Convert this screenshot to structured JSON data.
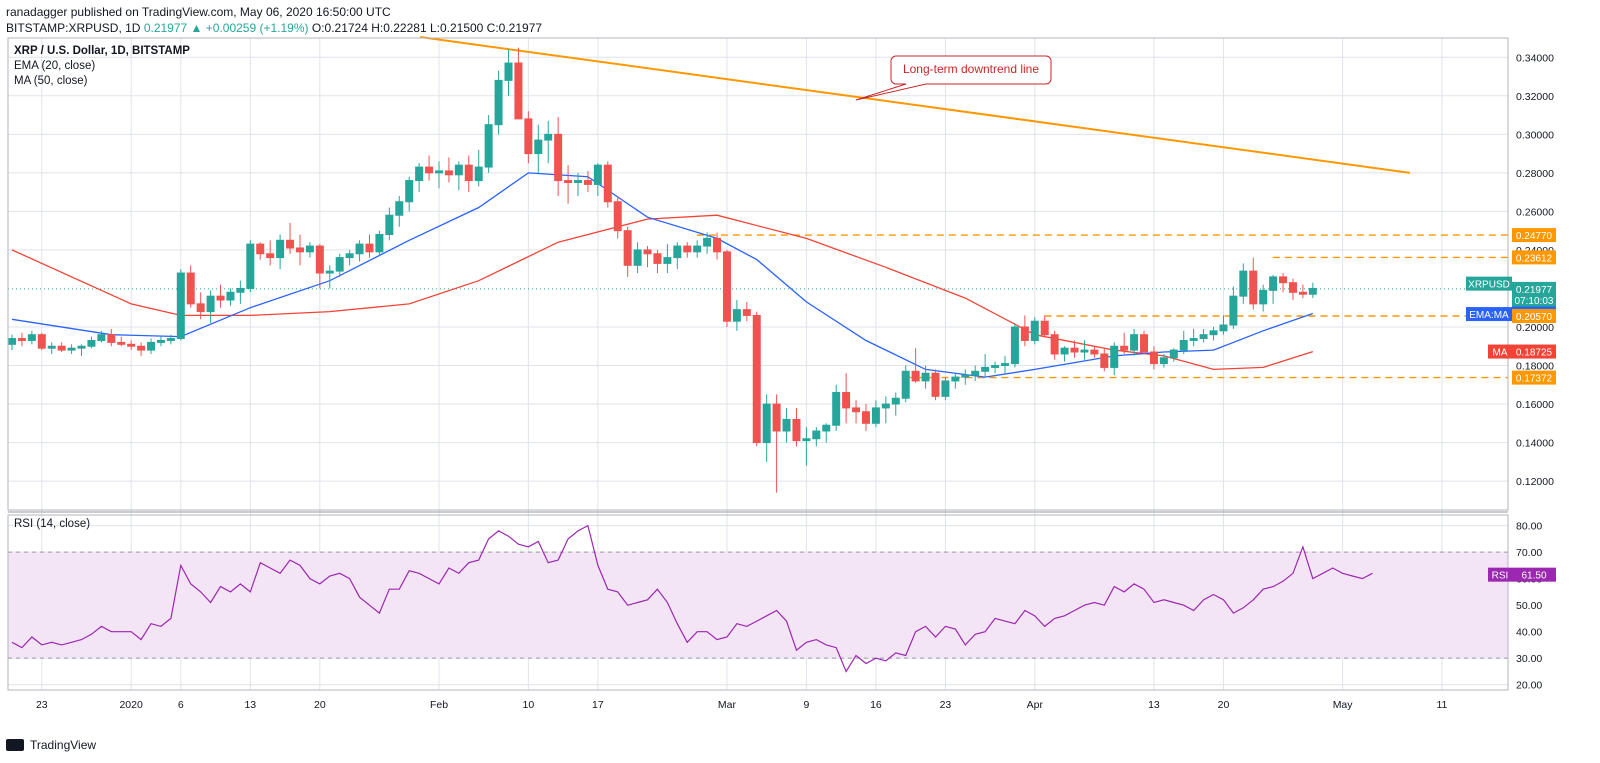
{
  "header": {
    "line1": "ranadagger published on TradingView.com, May 06, 2020 16:50:00 UTC",
    "symbol": "BITSTAMP:XRPUSD, 1D",
    "last": "0.21977",
    "change": "▲ +0.00259 (+1.19%)",
    "ohlc": "O:0.21724 H:0.22281 L:0.21500 C:0.21977"
  },
  "legend": {
    "title": "XRP / U.S. Dollar, 1D, BITSTAMP",
    "ema": "EMA (20, close)",
    "ma": "MA (50, close)",
    "rsi": "RSI (14, close)"
  },
  "annotation": "Long-term downtrend line",
  "footer": {
    "brand": "TradingView"
  },
  "colors": {
    "up": "#26a69a",
    "down": "#ef5350",
    "ema": "#2962ff",
    "ma": "#f44336",
    "trend": "#ff9800",
    "rsi": "#9c27b0",
    "rsi_band": "#f3e5f5",
    "grid": "#e0e3eb"
  },
  "chart_data": [
    {
      "type": "candlestick",
      "title": "XRP / U.S. Dollar, 1D, BITSTAMP",
      "x_ticks": [
        "23",
        "2020",
        "6",
        "13",
        "20",
        "Feb",
        "10",
        "17",
        "Mar",
        "9",
        "16",
        "23",
        "Apr",
        "13",
        "20",
        "May",
        "11"
      ],
      "y_ticks": [
        "0.34000",
        "0.32000",
        "0.30000",
        "0.28000",
        "0.26000",
        "0.24000",
        "0.20000",
        "0.18000",
        "0.16000",
        "0.14000",
        "0.12000"
      ],
      "ylim": [
        0.105,
        0.35
      ],
      "price_labels": [
        {
          "text": "0.24770",
          "value": 0.2477,
          "color": "#ff9800"
        },
        {
          "text": "0.23612",
          "value": 0.23612,
          "color": "#ff9800"
        },
        {
          "text": "XRPUSD",
          "value": 0.2225,
          "color": "#26a69a"
        },
        {
          "text": "0.21977",
          "value": 0.21977,
          "color": "#26a69a"
        },
        {
          "text": "07:10:03",
          "value": 0.2141,
          "color": "#26a69a"
        },
        {
          "text": "EMA:MA",
          "value": 0.2067,
          "color": "#2962ff"
        },
        {
          "text": "0.20702",
          "value": 0.20702,
          "color": "#2962ff"
        },
        {
          "text": "0.20570",
          "value": 0.2057,
          "color": "#ff9800"
        },
        {
          "text": "MA",
          "value": 0.18725,
          "color": "#f44336"
        },
        {
          "text": "0.18725",
          "value": 0.18725,
          "color": "#f44336"
        },
        {
          "text": "0.17372",
          "value": 0.17372,
          "color": "#ff9800"
        }
      ],
      "resistance_levels": [
        0.2477,
        0.23612,
        0.2057,
        0.17372
      ],
      "trendline": [
        [
          0.3505
        ],
        [
          0.28
        ]
      ],
      "ohlc": [
        [
          0.191,
          0.196,
          0.188,
          0.194
        ],
        [
          0.194,
          0.197,
          0.19,
          0.193
        ],
        [
          0.193,
          0.198,
          0.191,
          0.196
        ],
        [
          0.196,
          0.197,
          0.188,
          0.189
        ],
        [
          0.189,
          0.192,
          0.186,
          0.19
        ],
        [
          0.19,
          0.192,
          0.187,
          0.188
        ],
        [
          0.188,
          0.191,
          0.186,
          0.189
        ],
        [
          0.189,
          0.191,
          0.185,
          0.19
        ],
        [
          0.19,
          0.195,
          0.189,
          0.193
        ],
        [
          0.193,
          0.198,
          0.192,
          0.196
        ],
        [
          0.196,
          0.199,
          0.19,
          0.192
        ],
        [
          0.192,
          0.195,
          0.19,
          0.191
        ],
        [
          0.191,
          0.193,
          0.188,
          0.19
        ],
        [
          0.19,
          0.192,
          0.185,
          0.188
        ],
        [
          0.188,
          0.194,
          0.186,
          0.192
        ],
        [
          0.192,
          0.195,
          0.19,
          0.193
        ],
        [
          0.193,
          0.196,
          0.191,
          0.194
        ],
        [
          0.194,
          0.23,
          0.193,
          0.228
        ],
        [
          0.228,
          0.232,
          0.21,
          0.212
        ],
        [
          0.212,
          0.218,
          0.204,
          0.208
        ],
        [
          0.208,
          0.219,
          0.202,
          0.216
        ],
        [
          0.216,
          0.222,
          0.21,
          0.214
        ],
        [
          0.214,
          0.22,
          0.211,
          0.218
        ],
        [
          0.218,
          0.224,
          0.212,
          0.22
        ],
        [
          0.22,
          0.245,
          0.218,
          0.243
        ],
        [
          0.243,
          0.244,
          0.235,
          0.238
        ],
        [
          0.238,
          0.245,
          0.232,
          0.236
        ],
        [
          0.236,
          0.248,
          0.23,
          0.245
        ],
        [
          0.245,
          0.254,
          0.238,
          0.241
        ],
        [
          0.241,
          0.248,
          0.232,
          0.239
        ],
        [
          0.239,
          0.244,
          0.236,
          0.242
        ],
        [
          0.242,
          0.243,
          0.22,
          0.228
        ],
        [
          0.228,
          0.232,
          0.22,
          0.229
        ],
        [
          0.229,
          0.238,
          0.226,
          0.236
        ],
        [
          0.236,
          0.24,
          0.232,
          0.238
        ],
        [
          0.238,
          0.245,
          0.234,
          0.243
        ],
        [
          0.243,
          0.248,
          0.236,
          0.239
        ],
        [
          0.239,
          0.25,
          0.237,
          0.248
        ],
        [
          0.248,
          0.262,
          0.245,
          0.258
        ],
        [
          0.258,
          0.268,
          0.252,
          0.265
        ],
        [
          0.265,
          0.278,
          0.26,
          0.276
        ],
        [
          0.276,
          0.285,
          0.27,
          0.283
        ],
        [
          0.283,
          0.289,
          0.276,
          0.28
        ],
        [
          0.28,
          0.286,
          0.272,
          0.281
        ],
        [
          0.281,
          0.288,
          0.275,
          0.279
        ],
        [
          0.279,
          0.286,
          0.271,
          0.284
        ],
        [
          0.284,
          0.289,
          0.27,
          0.276
        ],
        [
          0.276,
          0.292,
          0.273,
          0.283
        ],
        [
          0.283,
          0.31,
          0.28,
          0.305
        ],
        [
          0.305,
          0.333,
          0.3,
          0.328
        ],
        [
          0.328,
          0.344,
          0.32,
          0.337
        ],
        [
          0.337,
          0.345,
          0.31,
          0.308
        ],
        [
          0.308,
          0.312,
          0.285,
          0.29
        ],
        [
          0.29,
          0.305,
          0.28,
          0.297
        ],
        [
          0.297,
          0.307,
          0.285,
          0.3
        ],
        [
          0.3,
          0.309,
          0.268,
          0.276
        ],
        [
          0.276,
          0.284,
          0.264,
          0.275
        ],
        [
          0.275,
          0.28,
          0.268,
          0.276
        ],
        [
          0.276,
          0.281,
          0.27,
          0.274
        ],
        [
          0.274,
          0.285,
          0.268,
          0.284
        ],
        [
          0.284,
          0.286,
          0.262,
          0.265
        ],
        [
          0.265,
          0.268,
          0.246,
          0.25
        ],
        [
          0.25,
          0.252,
          0.226,
          0.232
        ],
        [
          0.232,
          0.244,
          0.228,
          0.24
        ],
        [
          0.24,
          0.242,
          0.231,
          0.238
        ],
        [
          0.238,
          0.24,
          0.228,
          0.233
        ],
        [
          0.233,
          0.243,
          0.228,
          0.236
        ],
        [
          0.236,
          0.244,
          0.23,
          0.242
        ],
        [
          0.242,
          0.244,
          0.236,
          0.239
        ],
        [
          0.239,
          0.245,
          0.236,
          0.242
        ],
        [
          0.242,
          0.249,
          0.238,
          0.246
        ],
        [
          0.246,
          0.249,
          0.235,
          0.239
        ],
        [
          0.239,
          0.24,
          0.2,
          0.203
        ],
        [
          0.203,
          0.214,
          0.198,
          0.209
        ],
        [
          0.209,
          0.213,
          0.203,
          0.206
        ],
        [
          0.206,
          0.208,
          0.138,
          0.14
        ],
        [
          0.14,
          0.165,
          0.13,
          0.16
        ],
        [
          0.16,
          0.165,
          0.114,
          0.146
        ],
        [
          0.146,
          0.158,
          0.14,
          0.152
        ],
        [
          0.152,
          0.158,
          0.138,
          0.141
        ],
        [
          0.141,
          0.148,
          0.128,
          0.142
        ],
        [
          0.142,
          0.148,
          0.138,
          0.146
        ],
        [
          0.146,
          0.15,
          0.14,
          0.149
        ],
        [
          0.149,
          0.17,
          0.146,
          0.166
        ],
        [
          0.166,
          0.176,
          0.15,
          0.158
        ],
        [
          0.158,
          0.162,
          0.15,
          0.156
        ],
        [
          0.156,
          0.16,
          0.146,
          0.15
        ],
        [
          0.15,
          0.162,
          0.148,
          0.158
        ],
        [
          0.158,
          0.164,
          0.15,
          0.16
        ],
        [
          0.16,
          0.166,
          0.154,
          0.163
        ],
        [
          0.163,
          0.18,
          0.161,
          0.177
        ],
        [
          0.177,
          0.189,
          0.171,
          0.172
        ],
        [
          0.172,
          0.18,
          0.168,
          0.176
        ],
        [
          0.176,
          0.178,
          0.162,
          0.164
        ],
        [
          0.164,
          0.174,
          0.162,
          0.172
        ],
        [
          0.172,
          0.176,
          0.168,
          0.174
        ],
        [
          0.174,
          0.178,
          0.17,
          0.175
        ],
        [
          0.175,
          0.18,
          0.172,
          0.177
        ],
        [
          0.177,
          0.186,
          0.174,
          0.179
        ],
        [
          0.179,
          0.182,
          0.176,
          0.18
        ],
        [
          0.18,
          0.185,
          0.176,
          0.181
        ],
        [
          0.181,
          0.202,
          0.179,
          0.2
        ],
        [
          0.2,
          0.206,
          0.19,
          0.193
        ],
        [
          0.193,
          0.205,
          0.191,
          0.203
        ],
        [
          0.203,
          0.206,
          0.195,
          0.196
        ],
        [
          0.196,
          0.198,
          0.183,
          0.186
        ],
        [
          0.186,
          0.19,
          0.182,
          0.189
        ],
        [
          0.189,
          0.193,
          0.184,
          0.187
        ],
        [
          0.187,
          0.193,
          0.183,
          0.188
        ],
        [
          0.188,
          0.19,
          0.184,
          0.186
        ],
        [
          0.186,
          0.189,
          0.177,
          0.179
        ],
        [
          0.179,
          0.192,
          0.175,
          0.19
        ],
        [
          0.19,
          0.197,
          0.186,
          0.188
        ],
        [
          0.188,
          0.199,
          0.185,
          0.196
        ],
        [
          0.196,
          0.198,
          0.186,
          0.187
        ],
        [
          0.187,
          0.19,
          0.178,
          0.181
        ],
        [
          0.181,
          0.186,
          0.179,
          0.184
        ],
        [
          0.184,
          0.189,
          0.182,
          0.188
        ],
        [
          0.188,
          0.198,
          0.186,
          0.193
        ],
        [
          0.193,
          0.199,
          0.19,
          0.194
        ],
        [
          0.194,
          0.199,
          0.192,
          0.196
        ],
        [
          0.196,
          0.2,
          0.193,
          0.198
        ],
        [
          0.198,
          0.206,
          0.196,
          0.201
        ],
        [
          0.201,
          0.221,
          0.199,
          0.216
        ],
        [
          0.216,
          0.233,
          0.212,
          0.229
        ],
        [
          0.229,
          0.236,
          0.209,
          0.212
        ],
        [
          0.212,
          0.222,
          0.208,
          0.219
        ],
        [
          0.219,
          0.227,
          0.212,
          0.226
        ],
        [
          0.226,
          0.228,
          0.218,
          0.223
        ],
        [
          0.223,
          0.225,
          0.214,
          0.218
        ],
        [
          0.218,
          0.222,
          0.215,
          0.217
        ],
        [
          0.217,
          0.223,
          0.215,
          0.22
        ]
      ],
      "ema20": [
        [
          0,
          0.204
        ],
        [
          10,
          0.196
        ],
        [
          17,
          0.195
        ],
        [
          24,
          0.21
        ],
        [
          32,
          0.224
        ],
        [
          40,
          0.245
        ],
        [
          47,
          0.262
        ],
        [
          52,
          0.28
        ],
        [
          58,
          0.278
        ],
        [
          64,
          0.257
        ],
        [
          71,
          0.246
        ],
        [
          75,
          0.235
        ],
        [
          80,
          0.213
        ],
        [
          86,
          0.193
        ],
        [
          92,
          0.178
        ],
        [
          98,
          0.174
        ],
        [
          103,
          0.178
        ],
        [
          111,
          0.185
        ],
        [
          116,
          0.187
        ],
        [
          121,
          0.188
        ],
        [
          126,
          0.198
        ],
        [
          131,
          0.207
        ]
      ],
      "ma50": [
        [
          0,
          0.24
        ],
        [
          12,
          0.212
        ],
        [
          17,
          0.206
        ],
        [
          24,
          0.206
        ],
        [
          32,
          0.208
        ],
        [
          40,
          0.212
        ],
        [
          47,
          0.224
        ],
        [
          55,
          0.244
        ],
        [
          64,
          0.256
        ],
        [
          71,
          0.258
        ],
        [
          80,
          0.246
        ],
        [
          88,
          0.231
        ],
        [
          96,
          0.215
        ],
        [
          103,
          0.196
        ],
        [
          111,
          0.188
        ],
        [
          116,
          0.185
        ],
        [
          121,
          0.178
        ],
        [
          126,
          0.179
        ],
        [
          131,
          0.1872
        ]
      ]
    },
    {
      "type": "line",
      "title": "RSI (14, close)",
      "y_ticks": [
        "80.00",
        "70.00",
        "60.00",
        "50.00",
        "40.00",
        "30.00",
        "20.00"
      ],
      "ylim": [
        18,
        84
      ],
      "band": [
        30,
        70
      ],
      "last_label": {
        "name": "RSI",
        "value": "61.50"
      },
      "values": [
        36,
        34,
        38,
        35,
        36,
        35,
        36,
        37,
        39,
        42,
        40,
        40,
        40,
        37,
        43,
        42,
        45,
        65,
        58,
        55,
        51,
        57,
        55,
        58,
        55,
        66,
        64,
        62,
        67,
        65,
        60,
        58,
        61,
        62,
        60,
        53,
        50,
        47,
        56,
        56,
        63,
        62,
        60,
        58,
        64,
        62,
        66,
        67,
        75,
        78,
        76,
        73,
        72,
        74,
        66,
        67,
        75,
        78,
        80,
        65,
        56,
        55,
        50,
        51,
        52,
        56,
        51,
        43,
        36,
        40,
        40,
        37,
        38,
        43,
        42,
        44,
        46,
        48,
        44,
        33,
        36,
        37,
        35,
        34,
        25,
        31,
        28,
        30,
        29,
        32,
        31,
        40,
        42,
        38,
        42,
        41,
        35,
        39,
        40,
        45,
        44,
        43,
        48,
        46,
        42,
        45,
        46,
        48,
        50,
        51,
        50,
        57,
        55,
        58,
        56,
        51,
        52,
        51,
        50,
        48,
        52,
        54,
        52,
        47,
        49,
        52,
        56,
        57,
        59,
        62,
        72,
        60,
        62,
        64,
        62,
        61,
        60,
        62
      ]
    }
  ]
}
